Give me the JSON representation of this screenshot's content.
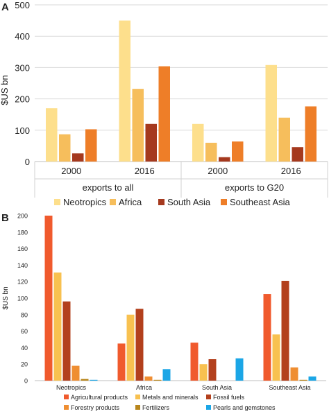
{
  "panel_a": {
    "letter": "A",
    "chart_data": {
      "type": "bar",
      "ylabel": "$US bn",
      "ylim": [
        0,
        500
      ],
      "yticks": [
        0,
        100,
        200,
        300,
        400,
        500
      ],
      "groups": [
        {
          "label": "exports to all",
          "categories": [
            "2000",
            "2016"
          ]
        },
        {
          "label": "exports to G20",
          "categories": [
            "2000",
            "2016"
          ]
        }
      ],
      "series": [
        {
          "name": "Neotropics",
          "color": "#FDDF8C",
          "values": [
            170,
            450,
            120,
            308
          ]
        },
        {
          "name": "Africa",
          "color": "#F6BE5C",
          "values": [
            87,
            232,
            60,
            140
          ]
        },
        {
          "name": "South Asia",
          "color": "#A5391E",
          "values": [
            26,
            120,
            14,
            46
          ]
        },
        {
          "name": "Southeast Asia",
          "color": "#EE7E28",
          "values": [
            103,
            304,
            64,
            176
          ]
        }
      ],
      "legend_position": "bottom",
      "grid": "horizontal"
    }
  },
  "panel_b": {
    "letter": "B",
    "chart_data": {
      "type": "bar",
      "ylabel": "$US bn",
      "ylim": [
        0,
        200
      ],
      "yticks": [
        0,
        20,
        40,
        60,
        80,
        100,
        120,
        140,
        160,
        180,
        200
      ],
      "categories": [
        "Neotropics",
        "Africa",
        "South Asia",
        "Southeast Asia"
      ],
      "series": [
        {
          "name": "Agricultural products",
          "color": "#F05A2D",
          "values": [
            200,
            45,
            46,
            105
          ]
        },
        {
          "name": "Metals and minerals",
          "color": "#F8C150",
          "values": [
            131,
            80,
            20,
            56
          ]
        },
        {
          "name": "Fossil fuels",
          "color": "#B3401D",
          "values": [
            96,
            87,
            26,
            121
          ]
        },
        {
          "name": "Forestry products",
          "color": "#EF8E32",
          "values": [
            18,
            5,
            0,
            16
          ]
        },
        {
          "name": "Fertilizers",
          "color": "#B8861C",
          "values": [
            2,
            1,
            0,
            1
          ]
        },
        {
          "name": "Pearls and gemstones",
          "color": "#1BA6E6",
          "values": [
            1,
            14,
            27,
            5
          ]
        }
      ],
      "legend_position": "bottom",
      "grid": "horizontal"
    }
  }
}
